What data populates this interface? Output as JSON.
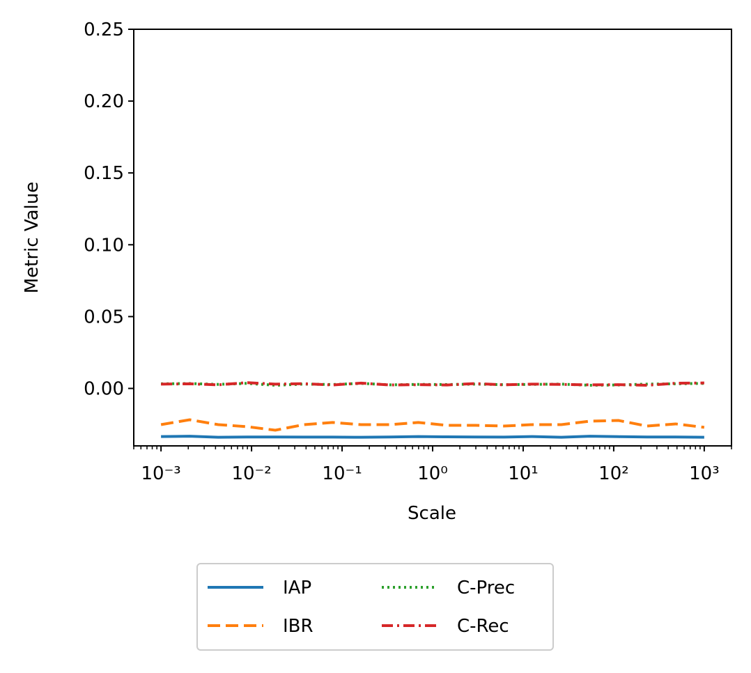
{
  "chart_data": {
    "type": "line",
    "xlabel": "Scale",
    "ylabel": "Metric Value",
    "x": [
      0.001,
      0.00207,
      0.00428,
      0.00886,
      0.0183,
      0.0379,
      0.0785,
      0.162,
      0.336,
      0.695,
      1.44,
      2.98,
      6.16,
      12.7,
      26.4,
      54.6,
      113,
      234,
      483,
      1000
    ],
    "xscale": "log",
    "x_minor_ticks": true,
    "xlim": [
      0.0005,
      2000
    ],
    "xticks": [
      {
        "value": 0.001,
        "label": "10⁻³"
      },
      {
        "value": 0.01,
        "label": "10⁻²"
      },
      {
        "value": 0.1,
        "label": "10⁻¹"
      },
      {
        "value": 1,
        "label": "10⁰"
      },
      {
        "value": 10,
        "label": "10¹"
      },
      {
        "value": 100,
        "label": "10²"
      },
      {
        "value": 1000,
        "label": "10³"
      }
    ],
    "ylim": [
      -0.04,
      0.25
    ],
    "yticks": [
      {
        "value": 0,
        "label": "0.00"
      },
      0.05,
      {
        "value": 0.1,
        "label": "0.10"
      },
      0.15,
      {
        "value": 0.2,
        "label": "0.20"
      },
      0.25
    ],
    "grid": false,
    "legend": "bottom",
    "series": [
      {
        "name": "IAP",
        "color": "#1f77b4",
        "dash": "solid",
        "values": [
          -0.0335,
          -0.0333,
          -0.034,
          -0.0338,
          -0.0338,
          -0.0339,
          -0.0339,
          -0.034,
          -0.0338,
          -0.0335,
          -0.0337,
          -0.0338,
          -0.0339,
          -0.0335,
          -0.034,
          -0.0333,
          -0.0336,
          -0.0338,
          -0.0338,
          -0.034
        ]
      },
      {
        "name": "IBR",
        "color": "#ff7f0e",
        "dash": "dashed",
        "values": [
          -0.0252,
          -0.0218,
          -0.0252,
          -0.0266,
          -0.0291,
          -0.0252,
          -0.0237,
          -0.0252,
          -0.0252,
          -0.0237,
          -0.0257,
          -0.0257,
          -0.0262,
          -0.0252,
          -0.0252,
          -0.0228,
          -0.0223,
          -0.0262,
          -0.0247,
          -0.0271
        ]
      },
      {
        "name": "C-Prec",
        "color": "#2ca02c",
        "dash": "dotted",
        "values": [
          0.0032,
          0.0034,
          0.0028,
          0.0035,
          0.0022,
          0.003,
          0.0027,
          0.0035,
          0.0025,
          0.0028,
          0.0027,
          0.003,
          0.0026,
          0.0028,
          0.003,
          0.0022,
          0.0024,
          0.003,
          0.0032,
          0.0035
        ]
      },
      {
        "name": "C-Rec",
        "color": "#d62728",
        "dash": "dashdot",
        "values": [
          0.003,
          0.0032,
          0.0025,
          0.004,
          0.003,
          0.0033,
          0.0024,
          0.0037,
          0.0024,
          0.0026,
          0.0024,
          0.0034,
          0.0025,
          0.003,
          0.0028,
          0.0025,
          0.0026,
          0.0022,
          0.0036,
          0.0038
        ]
      }
    ]
  }
}
